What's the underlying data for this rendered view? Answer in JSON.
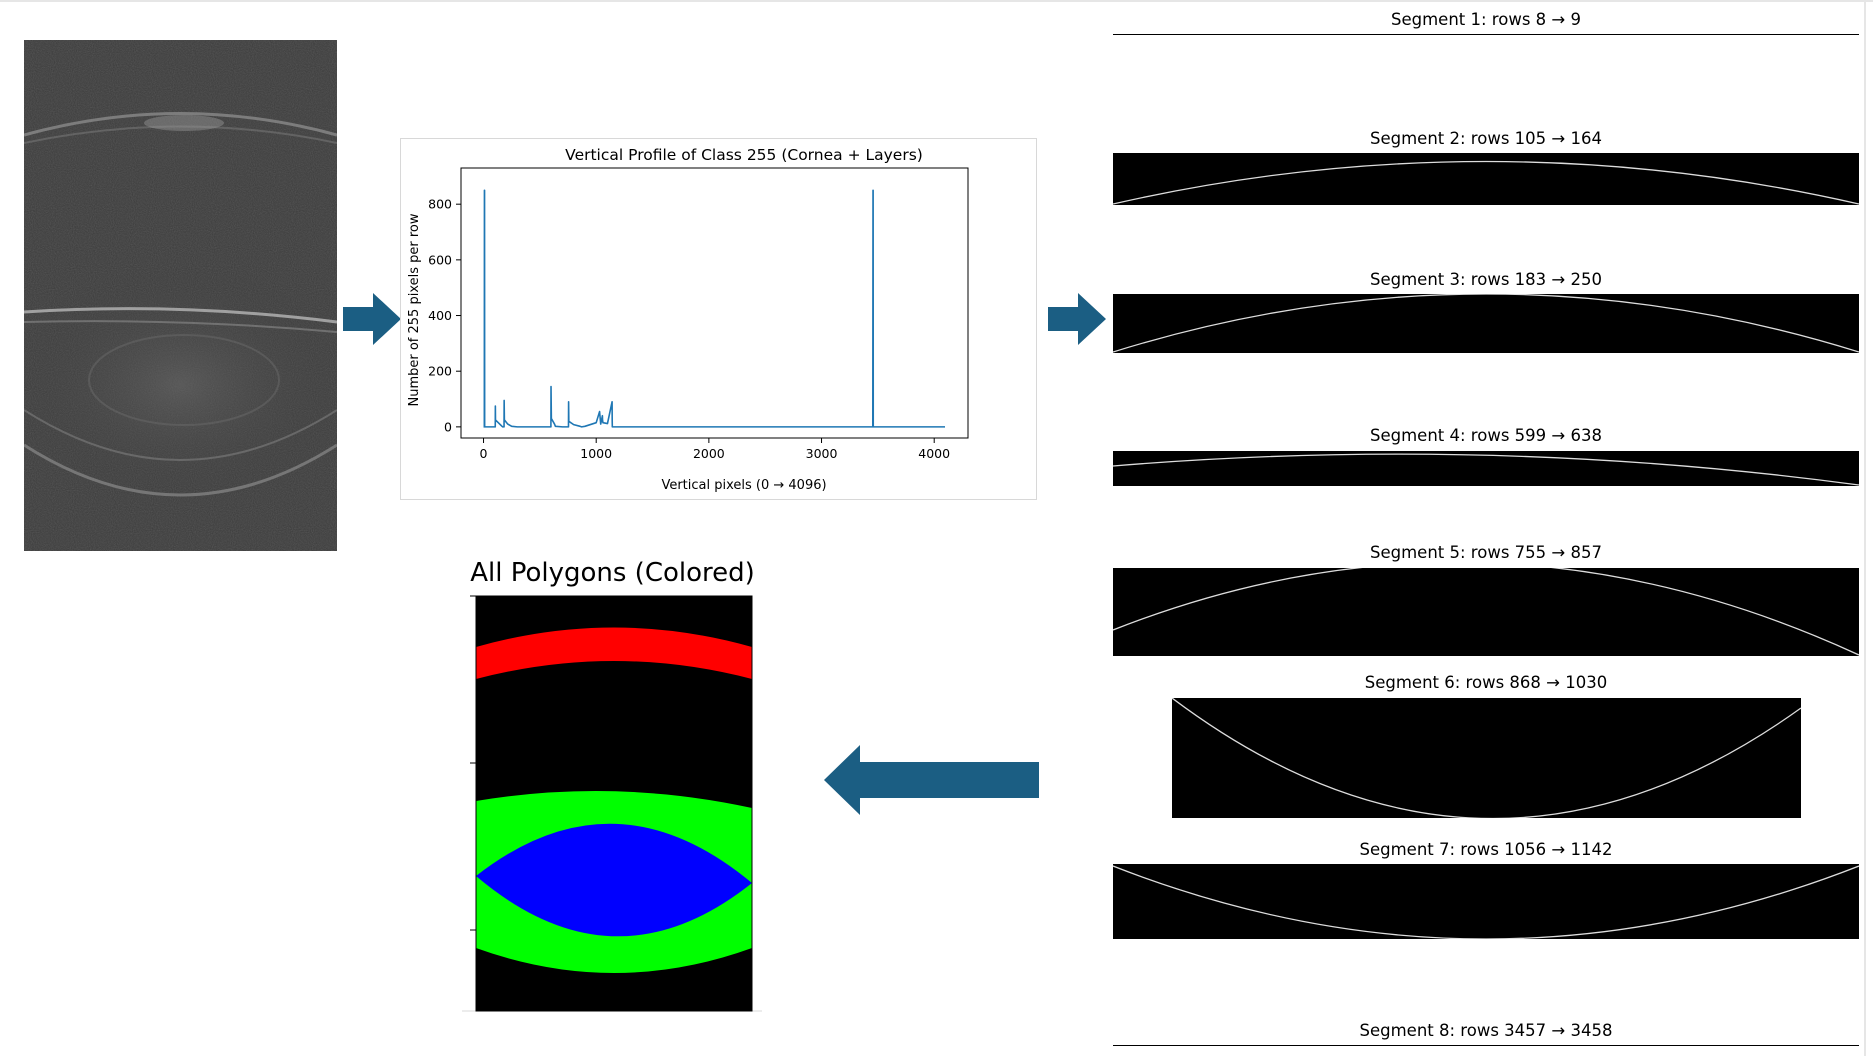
{
  "oct_image": {
    "label": ""
  },
  "profile_chart": {
    "title": "Vertical Profile of Class 255 (Cornea + Layers)",
    "xlabel": "Vertical pixels (0 → 4096)",
    "ylabel": "Number of 255 pixels per row",
    "x_ticks": [
      "0",
      "1000",
      "2000",
      "3000",
      "4000"
    ],
    "y_ticks": [
      "0",
      "200",
      "400",
      "600",
      "800"
    ],
    "series_color": "#1f77b4"
  },
  "chart_data": {
    "type": "line",
    "title": "Vertical Profile of Class 255 (Cornea + Layers)",
    "xlabel": "Vertical pixels (0 → 4096)",
    "ylabel": "Number of 255 pixels per row",
    "xlim": [
      -200,
      4300
    ],
    "ylim": [
      -40,
      930
    ],
    "grid": false,
    "series": [
      {
        "x": [
          0,
          7,
          8,
          9,
          10,
          104,
          105,
          106,
          164,
          170,
          182,
          183,
          185,
          215,
          250,
          300,
          598,
          599,
          602,
          630,
          638,
          700,
          754,
          755,
          757,
          800,
          857,
          870,
          900,
          1000,
          1030,
          1040,
          1055,
          1056,
          1060,
          1100,
          1141,
          1142,
          1143,
          1200,
          3455,
          3457,
          3458,
          3459,
          4096
        ],
        "y": [
          0,
          0,
          850,
          850,
          0,
          0,
          75,
          25,
          2,
          0,
          0,
          95,
          25,
          10,
          2,
          0,
          0,
          145,
          30,
          10,
          2,
          0,
          0,
          90,
          20,
          8,
          2,
          0,
          2,
          15,
          55,
          10,
          40,
          25,
          15,
          12,
          90,
          25,
          0,
          0,
          0,
          850,
          850,
          0,
          0
        ]
      }
    ]
  },
  "polygons_panel": {
    "title": "All Polygons (Colored)",
    "colors": {
      "cornea": "#ff0000",
      "lens": "#00ff00",
      "nucleus": "#0000ff",
      "background": "#000000"
    }
  },
  "segments": [
    {
      "title": "Segment 1: rows 8 → 9"
    },
    {
      "title": "Segment 2: rows 105 → 164"
    },
    {
      "title": "Segment 3: rows 183 → 250"
    },
    {
      "title": "Segment 4: rows 599 → 638"
    },
    {
      "title": "Segment 5: rows 755 → 857"
    },
    {
      "title": "Segment 6: rows 868 → 1030"
    },
    {
      "title": "Segment 7: rows 1056 → 1142"
    },
    {
      "title": "Segment 8: rows 3457 → 3458"
    }
  ],
  "arrow_color": "#1b5e83"
}
